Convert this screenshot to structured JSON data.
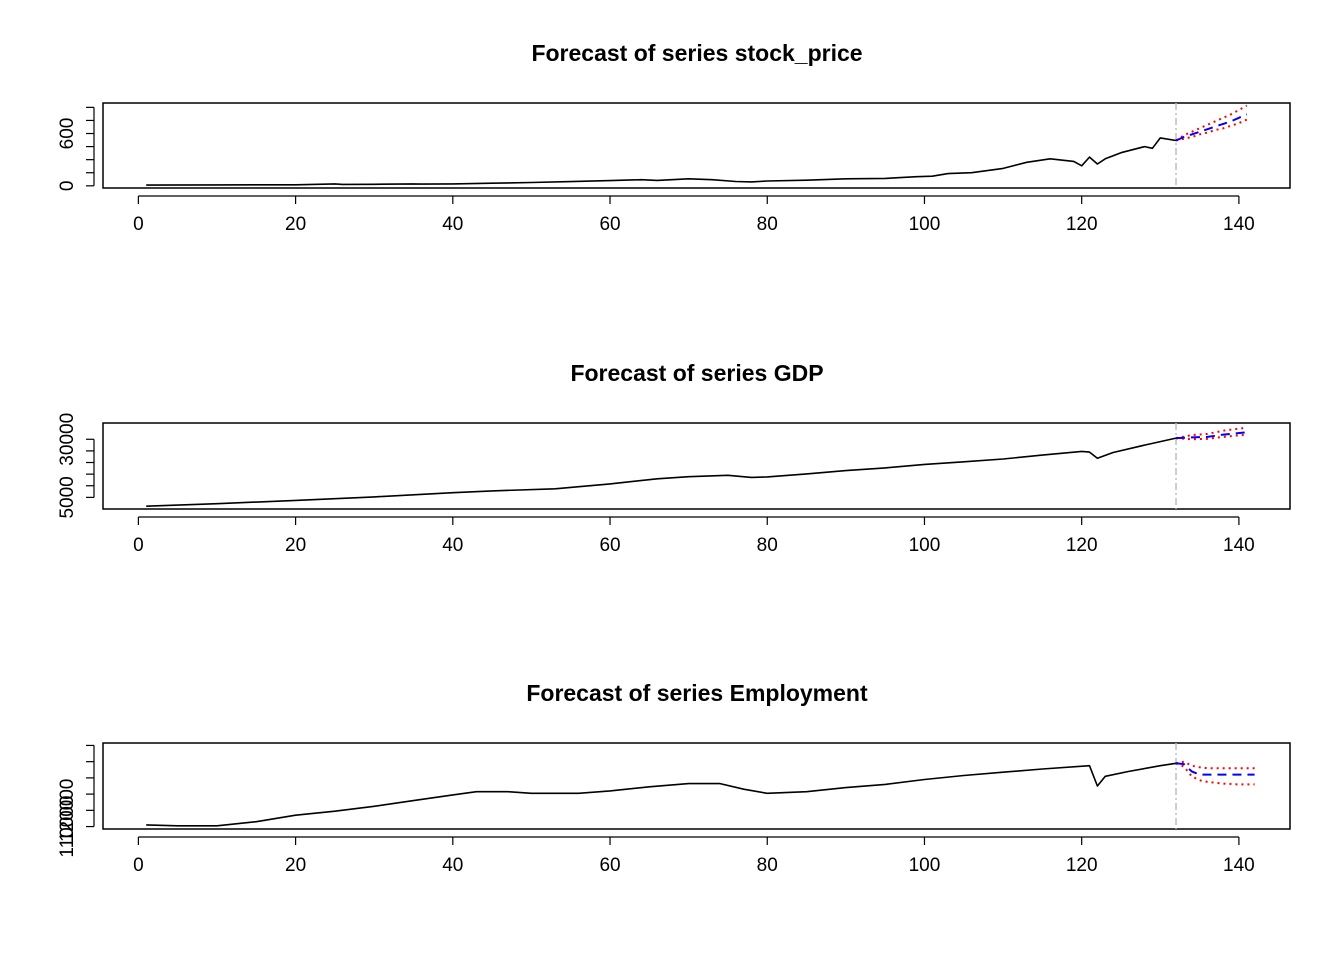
{
  "chart_data": [
    {
      "type": "line",
      "title": "Forecast of series stock_price",
      "xlabel": "",
      "ylabel": "",
      "xlim": [
        -4.5,
        146.5
      ],
      "ylim": [
        -25,
        950
      ],
      "xticks": [
        0,
        20,
        40,
        60,
        80,
        100,
        120,
        140
      ],
      "xtick_labels": [
        "0",
        "20",
        "40",
        "60",
        "80",
        "100",
        "120",
        "140"
      ],
      "yticks": [
        0,
        150,
        300,
        450,
        600,
        750,
        900
      ],
      "ytick_labels": [
        "0",
        "",
        "",
        "",
        "600",
        "",
        ""
      ],
      "forecast_origin": 132,
      "history": {
        "x": [
          1,
          10,
          20,
          25,
          26,
          30,
          35,
          36,
          40,
          45,
          50,
          55,
          60,
          64,
          66,
          70,
          73,
          76,
          78,
          80,
          85,
          90,
          95,
          99,
          101,
          103,
          106,
          110,
          113,
          116,
          119,
          120,
          121,
          122,
          123,
          125,
          128,
          129,
          130,
          132
        ],
        "y": [
          8,
          10,
          12,
          22,
          16,
          18,
          22,
          20,
          22,
          30,
          38,
          48,
          60,
          70,
          62,
          80,
          70,
          50,
          45,
          55,
          65,
          80,
          85,
          105,
          110,
          140,
          150,
          200,
          270,
          310,
          280,
          230,
          330,
          250,
          310,
          380,
          450,
          430,
          550,
          520
        ]
      },
      "forecast": {
        "x": [
          132,
          133,
          134,
          135,
          136,
          137,
          138,
          139,
          140,
          141
        ],
        "y": [
          520,
          560,
          590,
          620,
          650,
          680,
          710,
          740,
          780,
          820
        ]
      },
      "lower": {
        "x": [
          132,
          133,
          134,
          135,
          136,
          137,
          138,
          139,
          140,
          141
        ],
        "y": [
          520,
          540,
          560,
          590,
          610,
          640,
          660,
          690,
          720,
          760
        ]
      },
      "upper": {
        "x": [
          132,
          133,
          134,
          135,
          136,
          137,
          138,
          139,
          140,
          141
        ],
        "y": [
          520,
          580,
          620,
          660,
          700,
          740,
          780,
          820,
          870,
          920
        ]
      }
    },
    {
      "type": "line",
      "title": "Forecast of series GDP",
      "xlabel": "",
      "ylabel": "",
      "xlim": [
        -4.5,
        146.5
      ],
      "ylim": [
        0,
        37000
      ],
      "xticks": [
        0,
        20,
        40,
        60,
        80,
        100,
        120,
        140
      ],
      "xtick_labels": [
        "0",
        "20",
        "40",
        "60",
        "80",
        "100",
        "120",
        "140"
      ],
      "yticks": [
        5000,
        30000
      ],
      "ytick_labels": [
        "5000",
        "30000"
      ],
      "minor_yticks": [
        10000,
        15000,
        20000,
        25000
      ],
      "forecast_origin": 132,
      "history": {
        "x": [
          1,
          10,
          20,
          30,
          40,
          45,
          53,
          60,
          66,
          70,
          75,
          78,
          80,
          85,
          90,
          95,
          100,
          105,
          110,
          115,
          120,
          121,
          122,
          124,
          128,
          132
        ],
        "y": [
          1200,
          2300,
          3700,
          5200,
          7000,
          7800,
          8700,
          10800,
          13000,
          13900,
          14500,
          13600,
          13800,
          15100,
          16500,
          17700,
          19200,
          20300,
          21500,
          23200,
          24800,
          24500,
          21800,
          24300,
          27500,
          30500
        ]
      },
      "forecast": {
        "x": [
          132,
          134,
          136,
          138,
          141
        ],
        "y": [
          30500,
          30800,
          31000,
          32000,
          33000
        ]
      },
      "lower": {
        "x": [
          132,
          134,
          136,
          138,
          141
        ],
        "y": [
          30500,
          30000,
          30200,
          31000,
          32000
        ]
      },
      "upper": {
        "x": [
          132,
          134,
          136,
          138,
          141
        ],
        "y": [
          30500,
          31800,
          32300,
          33700,
          35000
        ]
      }
    },
    {
      "type": "line",
      "title": "Forecast of series Employment",
      "xlabel": "",
      "ylabel": "",
      "xlim": [
        -4.5,
        146.5
      ],
      "ylim": [
        108500,
        161500
      ],
      "xticks": [
        0,
        20,
        40,
        60,
        80,
        100,
        120,
        140
      ],
      "xtick_labels": [
        "0",
        "20",
        "40",
        "60",
        "80",
        "100",
        "120",
        "140"
      ],
      "yticks": [
        110000,
        120000,
        130000,
        140000,
        150000,
        160000
      ],
      "ytick_labels": [
        "110000",
        "120000",
        "",
        "",
        "",
        ""
      ],
      "forecast_origin": 132,
      "history": {
        "x": [
          1,
          5,
          10,
          15,
          20,
          25,
          30,
          35,
          40,
          43,
          47,
          50,
          56,
          60,
          65,
          70,
          74,
          77,
          80,
          85,
          90,
          95,
          100,
          105,
          110,
          115,
          121,
          122,
          123,
          126,
          130,
          132
        ],
        "y": [
          111000,
          110500,
          110500,
          113000,
          117000,
          119500,
          122500,
          126000,
          129500,
          131500,
          131500,
          130500,
          130500,
          132000,
          134500,
          136500,
          136500,
          133000,
          130500,
          131500,
          134000,
          136000,
          139000,
          141500,
          143500,
          145500,
          147500,
          135000,
          141000,
          144000,
          147500,
          149000
        ]
      },
      "forecast": {
        "x": [
          132,
          133,
          134,
          135,
          136,
          138,
          140,
          142
        ],
        "y": [
          149000,
          148500,
          144000,
          142000,
          142000,
          142000,
          142000,
          142000
        ]
      },
      "lower": {
        "x": [
          132,
          133,
          134,
          135,
          136,
          138,
          140,
          142
        ],
        "y": [
          149000,
          147000,
          141000,
          138500,
          137500,
          136500,
          136000,
          136000
        ]
      },
      "upper": {
        "x": [
          132,
          133,
          134,
          135,
          136,
          138,
          140,
          142
        ],
        "y": [
          149000,
          150000,
          147500,
          146500,
          146000,
          146000,
          146000,
          146000
        ]
      }
    }
  ],
  "colors": {
    "history": "#000000",
    "forecast": "#0000ff",
    "interval": "#ff0000",
    "origin_line": "#bebebe",
    "background": "#ffffff"
  }
}
